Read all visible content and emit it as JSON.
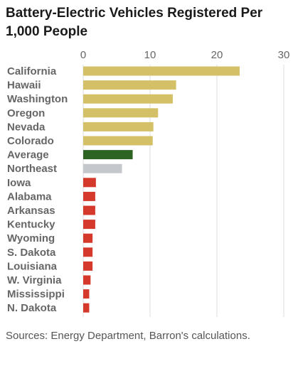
{
  "title": "Battery-Electric Vehicles Registered Per 1,000 People",
  "source": "Sources: Energy Department, Barron's calculations.",
  "colors": {
    "gold": "#d4c067",
    "green": "#2e6423",
    "gray": "#c4c8cc",
    "red": "#d4392c",
    "grid": "#dddddd"
  },
  "chart_data": {
    "type": "bar",
    "orientation": "horizontal",
    "title": "Battery-Electric Vehicles Registered Per 1,000 People",
    "xlim": [
      0,
      30
    ],
    "xticks": [
      0,
      10,
      20,
      30
    ],
    "grid": true,
    "categories": [
      "California",
      "Hawaii",
      "Washington",
      "Oregon",
      "Nevada",
      "Colorado",
      "Average",
      "Northeast",
      "Iowa",
      "Alabama",
      "Arkansas",
      "Kentucky",
      "Wyoming",
      "S. Dakota",
      "Louisiana",
      "W. Virginia",
      "Mississippi",
      "N. Dakota"
    ],
    "values": [
      23.4,
      13.9,
      13.4,
      11.2,
      10.5,
      10.4,
      7.4,
      5.8,
      1.9,
      1.8,
      1.8,
      1.8,
      1.4,
      1.4,
      1.4,
      1.1,
      0.9,
      0.9
    ],
    "bar_colors": [
      "gold",
      "gold",
      "gold",
      "gold",
      "gold",
      "gold",
      "green",
      "gray",
      "red",
      "red",
      "red",
      "red",
      "red",
      "red",
      "red",
      "red",
      "red",
      "red"
    ]
  }
}
